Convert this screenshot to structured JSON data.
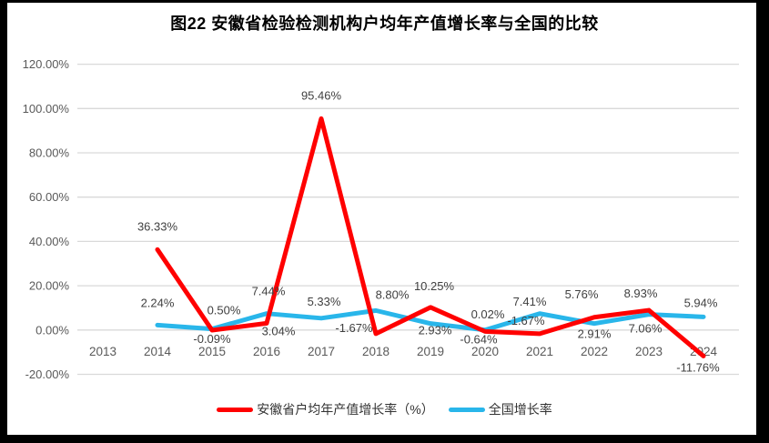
{
  "title": "图22 安徽省检验检测机构户均年产值增长率与全国的比较",
  "frame_color": "#000000",
  "chart_data": {
    "type": "line",
    "title": "图22 安徽省检验检测机构户均年产值增长率与全国的比较",
    "categories": [
      "2013",
      "2014",
      "2015",
      "2016",
      "2017",
      "2018",
      "2019",
      "2020",
      "2021",
      "2022",
      "2023",
      "2024"
    ],
    "series": [
      {
        "name": "安徽省户均年产值增长率（%）",
        "color": "#FF0000",
        "values": [
          null,
          36.33,
          -0.09,
          3.04,
          95.46,
          -1.67,
          10.25,
          -0.64,
          -1.67,
          5.76,
          8.93,
          -11.76
        ],
        "labels": [
          null,
          "36.33%",
          "-0.09%",
          "3.04%",
          "95.46%",
          "-1.67%",
          "10.25%",
          "-0.64%",
          "-1.67%",
          "5.76%",
          "8.93%",
          "-11.76%"
        ]
      },
      {
        "name": "全国增长率",
        "color": "#29B6EA",
        "values": [
          null,
          2.24,
          0.5,
          7.44,
          5.33,
          8.8,
          2.93,
          0.02,
          7.41,
          2.91,
          7.06,
          5.94
        ],
        "labels": [
          null,
          "2.24%",
          "0.50%",
          "7.44%",
          "5.33%",
          "8.80%",
          "2.93%",
          "0.02%",
          "7.41%",
          "2.91%",
          "7.06%",
          "5.94%"
        ]
      }
    ],
    "y_axis": {
      "min": -20,
      "max": 120,
      "step": 20,
      "tick_labels": [
        "-20.00%",
        "0.00%",
        "20.00%",
        "40.00%",
        "60.00%",
        "80.00%",
        "100.00%",
        "120.00%"
      ]
    },
    "grid": true,
    "gridline_color": "#D9D9D9",
    "axis_label_color": "#595959",
    "data_label_color": "#404040",
    "legend_position": "bottom"
  }
}
